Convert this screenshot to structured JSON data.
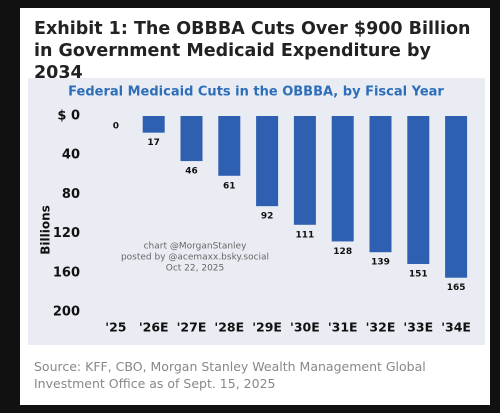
{
  "header": {
    "title": "Exhibit 1: The OBBBA Cuts Over $900 Billion in Government Medicaid Expenditure by 2034"
  },
  "chart_data": {
    "type": "bar",
    "title": "Federal Medicaid Cuts in the OBBBA, by Fiscal Year",
    "y_label": "Billions",
    "categories": [
      "'25",
      "'26E",
      "'27E",
      "'28E",
      "'29E",
      "'30E",
      "'31E",
      "'32E",
      "'33E",
      "'34E"
    ],
    "values": [
      0,
      17,
      46,
      61,
      92,
      111,
      128,
      139,
      151,
      165
    ],
    "color": "#2e5fb0",
    "ylim": [
      0,
      200
    ],
    "y_inverted": true,
    "yticks": [
      {
        "value": 0,
        "label": "$ 0"
      },
      40,
      80,
      120,
      160,
      200
    ],
    "annotation": [
      "chart @MorganStanley",
      "posted by @acemaxx.bsky.social",
      "Oct 22, 2025"
    ]
  },
  "footer": {
    "source": "Source: KFF, CBO, Morgan Stanley Wealth Management Global Investment Office as of Sept. 15, 2025"
  }
}
